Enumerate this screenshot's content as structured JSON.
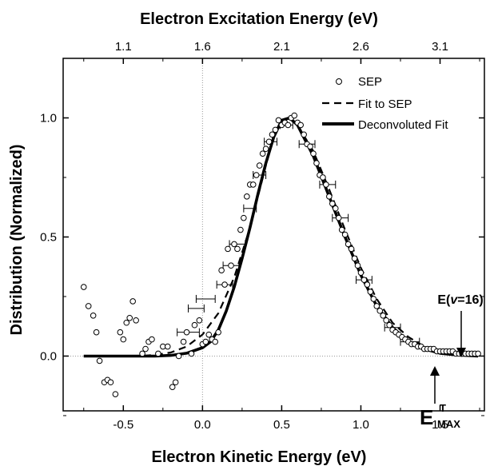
{
  "chart_data": {
    "type": "scatter",
    "title": "",
    "xlabel": "Electron Kinetic Energy (eV)",
    "ylabel": "Distribution (Normalized)",
    "x2label": "Electron Excitation Energy (eV)",
    "xlim": [
      -0.88,
      1.78
    ],
    "ylim": [
      -0.23,
      1.25
    ],
    "x_ticks": [
      "-0.5",
      "0.0",
      "0.5",
      "1.0",
      "1.5"
    ],
    "x_tick_values": [
      -0.5,
      0.0,
      0.5,
      1.0,
      1.5
    ],
    "y_ticks": [
      "0.0",
      "0.5",
      "1.0"
    ],
    "y_tick_values": [
      0.0,
      0.5,
      1.0
    ],
    "x2_ticks": [
      "1.1",
      "1.6",
      "2.1",
      "2.6",
      "3.1"
    ],
    "x2_tick_values": [
      -0.5,
      0.0,
      0.5,
      1.0,
      1.5
    ],
    "grid": false,
    "legend_position": "top-right",
    "legend": [
      {
        "label": "SEP",
        "style": "open-circle"
      },
      {
        "label": "Fit to SEP",
        "style": "dashed"
      },
      {
        "label": "Deconvoluted Fit",
        "style": "solid-thick"
      }
    ],
    "series": [
      {
        "name": "SEP",
        "type": "scatter",
        "points": [
          [
            -0.75,
            0.29
          ],
          [
            -0.72,
            0.21
          ],
          [
            -0.69,
            0.17
          ],
          [
            -0.67,
            0.1
          ],
          [
            -0.65,
            -0.02
          ],
          [
            -0.62,
            -0.11
          ],
          [
            -0.6,
            -0.1
          ],
          [
            -0.58,
            -0.11
          ],
          [
            -0.55,
            -0.16
          ],
          [
            -0.52,
            0.1
          ],
          [
            -0.5,
            0.07
          ],
          [
            -0.48,
            0.14
          ],
          [
            -0.46,
            0.16
          ],
          [
            -0.44,
            0.23
          ],
          [
            -0.42,
            0.15
          ],
          [
            -0.38,
            0.01
          ],
          [
            -0.36,
            0.03
          ],
          [
            -0.34,
            0.06
          ],
          [
            -0.32,
            0.07
          ],
          [
            -0.28,
            0.01
          ],
          [
            -0.25,
            0.04
          ],
          [
            -0.22,
            0.04
          ],
          [
            -0.19,
            -0.13
          ],
          [
            -0.17,
            -0.11
          ],
          [
            -0.15,
            0.0
          ],
          [
            -0.12,
            0.06
          ],
          [
            -0.1,
            0.1
          ],
          [
            -0.07,
            0.01
          ],
          [
            -0.05,
            0.13
          ],
          [
            -0.02,
            0.15
          ],
          [
            0.0,
            0.05
          ],
          [
            0.02,
            0.06
          ],
          [
            0.04,
            0.09
          ],
          [
            0.06,
            0.07
          ],
          [
            0.08,
            0.06
          ],
          [
            0.1,
            0.1
          ],
          [
            0.12,
            0.36
          ],
          [
            0.14,
            0.3
          ],
          [
            0.16,
            0.45
          ],
          [
            0.18,
            0.38
          ],
          [
            0.2,
            0.47
          ],
          [
            0.22,
            0.45
          ],
          [
            0.24,
            0.53
          ],
          [
            0.26,
            0.58
          ],
          [
            0.28,
            0.67
          ],
          [
            0.3,
            0.72
          ],
          [
            0.32,
            0.72
          ],
          [
            0.34,
            0.76
          ],
          [
            0.36,
            0.8
          ],
          [
            0.38,
            0.85
          ],
          [
            0.4,
            0.87
          ],
          [
            0.42,
            0.9
          ],
          [
            0.44,
            0.93
          ],
          [
            0.46,
            0.95
          ],
          [
            0.48,
            0.99
          ],
          [
            0.5,
            0.97
          ],
          [
            0.52,
            0.98
          ],
          [
            0.54,
            0.97
          ],
          [
            0.56,
            1.0
          ],
          [
            0.58,
            1.01
          ],
          [
            0.6,
            0.98
          ],
          [
            0.62,
            0.97
          ],
          [
            0.64,
            0.93
          ],
          [
            0.66,
            0.89
          ],
          [
            0.68,
            0.88
          ],
          [
            0.7,
            0.85
          ],
          [
            0.72,
            0.81
          ],
          [
            0.74,
            0.76
          ],
          [
            0.76,
            0.75
          ],
          [
            0.78,
            0.72
          ],
          [
            0.8,
            0.67
          ],
          [
            0.82,
            0.64
          ],
          [
            0.84,
            0.62
          ],
          [
            0.86,
            0.58
          ],
          [
            0.88,
            0.53
          ],
          [
            0.9,
            0.51
          ],
          [
            0.92,
            0.47
          ],
          [
            0.94,
            0.45
          ],
          [
            0.96,
            0.41
          ],
          [
            0.98,
            0.38
          ],
          [
            1.0,
            0.35
          ],
          [
            1.02,
            0.32
          ],
          [
            1.04,
            0.3
          ],
          [
            1.06,
            0.27
          ],
          [
            1.08,
            0.24
          ],
          [
            1.1,
            0.21
          ],
          [
            1.12,
            0.19
          ],
          [
            1.14,
            0.17
          ],
          [
            1.16,
            0.15
          ],
          [
            1.18,
            0.13
          ],
          [
            1.2,
            0.11
          ],
          [
            1.22,
            0.1
          ],
          [
            1.24,
            0.09
          ],
          [
            1.26,
            0.08
          ],
          [
            1.28,
            0.07
          ],
          [
            1.3,
            0.06
          ],
          [
            1.32,
            0.05
          ],
          [
            1.34,
            0.05
          ],
          [
            1.36,
            0.04
          ],
          [
            1.38,
            0.04
          ],
          [
            1.4,
            0.03
          ],
          [
            1.42,
            0.03
          ],
          [
            1.44,
            0.03
          ],
          [
            1.46,
            0.03
          ],
          [
            1.48,
            0.02
          ],
          [
            1.5,
            0.02
          ],
          [
            1.52,
            0.02
          ],
          [
            1.54,
            0.02
          ],
          [
            1.56,
            0.02
          ],
          [
            1.58,
            0.02
          ],
          [
            1.6,
            0.01
          ],
          [
            1.62,
            0.01
          ],
          [
            1.64,
            0.01
          ],
          [
            1.66,
            0.01
          ],
          [
            1.68,
            0.01
          ],
          [
            1.7,
            0.01
          ],
          [
            1.72,
            0.01
          ],
          [
            1.74,
            0.01
          ]
        ]
      },
      {
        "name": "Fit to SEP",
        "type": "line",
        "style": "dashed",
        "points": [
          [
            -0.75,
            0.0
          ],
          [
            -0.4,
            0.0
          ],
          [
            -0.3,
            0.005
          ],
          [
            -0.2,
            0.015
          ],
          [
            -0.1,
            0.04
          ],
          [
            0.0,
            0.09
          ],
          [
            0.1,
            0.18
          ],
          [
            0.2,
            0.33
          ],
          [
            0.3,
            0.54
          ],
          [
            0.4,
            0.8
          ],
          [
            0.45,
            0.92
          ],
          [
            0.5,
            0.98
          ],
          [
            0.55,
            1.0
          ],
          [
            0.6,
            0.97
          ],
          [
            0.7,
            0.86
          ],
          [
            0.8,
            0.7
          ],
          [
            0.9,
            0.53
          ],
          [
            1.0,
            0.37
          ],
          [
            1.1,
            0.24
          ],
          [
            1.2,
            0.14
          ],
          [
            1.3,
            0.08
          ],
          [
            1.4,
            0.04
          ],
          [
            1.5,
            0.02
          ],
          [
            1.6,
            0.01
          ],
          [
            1.74,
            0.005
          ]
        ]
      },
      {
        "name": "Deconvoluted Fit",
        "type": "line",
        "style": "solid-thick",
        "points": [
          [
            -0.75,
            0.0
          ],
          [
            -0.3,
            0.0
          ],
          [
            -0.2,
            0.003
          ],
          [
            -0.1,
            0.012
          ],
          [
            0.0,
            0.035
          ],
          [
            0.05,
            0.06
          ],
          [
            0.1,
            0.11
          ],
          [
            0.15,
            0.19
          ],
          [
            0.2,
            0.29
          ],
          [
            0.25,
            0.41
          ],
          [
            0.3,
            0.54
          ],
          [
            0.35,
            0.68
          ],
          [
            0.4,
            0.81
          ],
          [
            0.45,
            0.92
          ],
          [
            0.5,
            0.99
          ],
          [
            0.55,
            1.0
          ],
          [
            0.6,
            0.97
          ],
          [
            0.7,
            0.84
          ],
          [
            0.8,
            0.67
          ],
          [
            0.9,
            0.5
          ],
          [
            1.0,
            0.34
          ],
          [
            1.1,
            0.21
          ],
          [
            1.2,
            0.12
          ],
          [
            1.3,
            0.06
          ],
          [
            1.4,
            0.03
          ],
          [
            1.5,
            0.012
          ],
          [
            1.6,
            0.005
          ],
          [
            1.74,
            0.0
          ]
        ]
      }
    ],
    "error_bars": [
      [
        -0.09,
        0.1,
        0.07
      ],
      [
        -0.04,
        0.2,
        0.05
      ],
      [
        0.02,
        0.24,
        0.06
      ],
      [
        0.14,
        0.3,
        0.05
      ],
      [
        0.18,
        0.38,
        0.05
      ],
      [
        0.22,
        0.47,
        0.05
      ],
      [
        0.3,
        0.62,
        0.04
      ],
      [
        0.36,
        0.76,
        0.04
      ],
      [
        0.43,
        0.9,
        0.04
      ],
      [
        0.53,
        0.97,
        0.04
      ],
      [
        0.66,
        0.89,
        0.05
      ],
      [
        0.79,
        0.72,
        0.05
      ],
      [
        0.87,
        0.58,
        0.05
      ],
      [
        1.02,
        0.32,
        0.05
      ],
      [
        1.2,
        0.12,
        0.05
      ],
      [
        1.31,
        0.06,
        0.06
      ]
    ],
    "annotations": [
      {
        "text": "E(",
        "italic_part": "v",
        "rest": "=16)",
        "x": 1.7,
        "y": 0.02
      },
      {
        "text": "E",
        "superscript": "T",
        "subscript": "MAX",
        "x": 1.53,
        "y": 0.0
      }
    ]
  }
}
